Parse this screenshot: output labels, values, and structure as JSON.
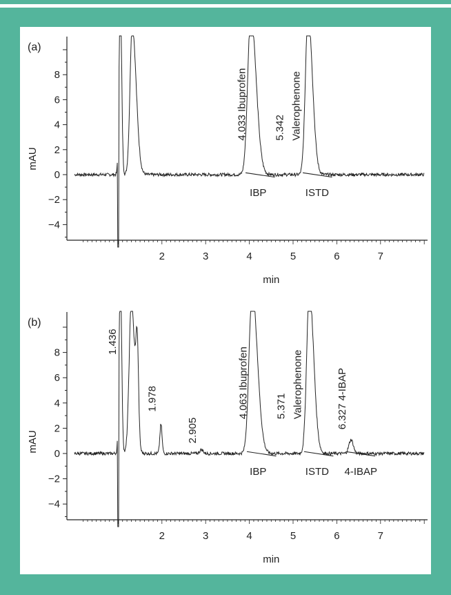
{
  "chart_data": [
    {
      "type": "line",
      "panel_label": "(a)",
      "xlabel": "min",
      "ylabel": "mAU",
      "xlim": [
        0,
        8
      ],
      "ylim": [
        -5,
        10
      ],
      "xticks": [
        "2",
        "3",
        "4",
        "5",
        "6",
        "7"
      ],
      "yticks": [
        "8",
        "6",
        "4",
        "2",
        "0",
        "−2",
        "−4"
      ],
      "peaks": [
        {
          "t": 1.05,
          "height": 14,
          "width": 0.03,
          "name": ""
        },
        {
          "t": 1.32,
          "height": 12,
          "width": 0.05,
          "tail": 0.09,
          "name": ""
        },
        {
          "t": 4.033,
          "height": 13,
          "width": 0.07,
          "tail": 0.12,
          "name": "Ibuprofen"
        },
        {
          "t": 5.342,
          "height": 13,
          "width": 0.06,
          "tail": 0.1,
          "name": "Valerophenone"
        }
      ],
      "peak_labels": [
        {
          "t": 4.033,
          "text": "4.033 Ibuprofen"
        },
        {
          "t": 5.342,
          "text": "5.342"
        },
        {
          "t": 5.342,
          "text": "Valerophenone"
        }
      ],
      "below_labels": [
        {
          "t": 4.2,
          "text": "IBP"
        },
        {
          "t": 5.55,
          "text": "ISTD"
        }
      ]
    },
    {
      "type": "line",
      "panel_label": "(b)",
      "xlabel": "min",
      "ylabel": "mAU",
      "xlim": [
        0,
        8
      ],
      "ylim": [
        -5,
        10
      ],
      "xticks": [
        "2",
        "3",
        "4",
        "5",
        "6",
        "7"
      ],
      "yticks": [
        "8",
        "6",
        "4",
        "2",
        "0",
        "−2",
        "−4"
      ],
      "peaks": [
        {
          "t": 1.05,
          "height": 14,
          "width": 0.03,
          "name": ""
        },
        {
          "t": 1.3,
          "height": 12,
          "width": 0.05,
          "tail": 0.08,
          "name": ""
        },
        {
          "t": 1.436,
          "height": 7,
          "width": 0.03,
          "name": ""
        },
        {
          "t": 1.978,
          "height": 2.3,
          "width": 0.025,
          "name": ""
        },
        {
          "t": 2.905,
          "height": 0.3,
          "width": 0.04,
          "name": ""
        },
        {
          "t": 4.063,
          "height": 13,
          "width": 0.07,
          "tail": 0.12,
          "name": "Ibuprofen"
        },
        {
          "t": 5.371,
          "height": 13,
          "width": 0.06,
          "tail": 0.1,
          "name": "Valerophenone"
        },
        {
          "t": 6.327,
          "height": 1.1,
          "width": 0.05,
          "name": "4-IBAP"
        }
      ],
      "peak_labels": [
        {
          "t": 1.0,
          "text": "1.436"
        },
        {
          "t": 1.978,
          "text": "1.978"
        },
        {
          "t": 2.905,
          "text": "2.905"
        },
        {
          "t": 4.063,
          "text": "4.063 Ibuprofen"
        },
        {
          "t": 5.371,
          "text": "5.371"
        },
        {
          "t": 5.371,
          "text": "Valerophenone"
        },
        {
          "t": 6.327,
          "text": "6.327 4-IBAP"
        }
      ],
      "below_labels": [
        {
          "t": 4.2,
          "text": "IBP"
        },
        {
          "t": 5.55,
          "text": "ISTD"
        },
        {
          "t": 6.55,
          "text": "4-IBAP"
        }
      ]
    }
  ]
}
